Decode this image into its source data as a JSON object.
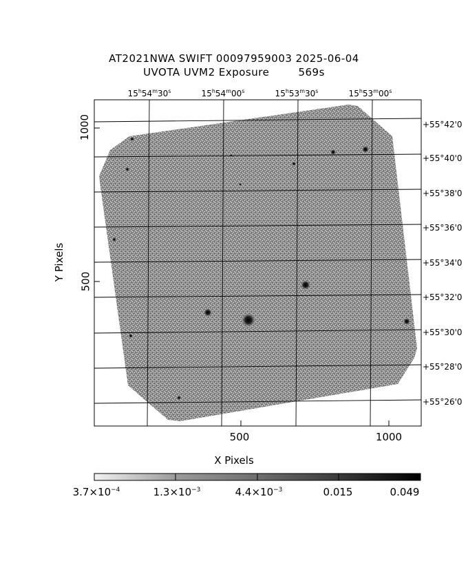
{
  "header": {
    "title_line1": "AT2021NWA SWIFT 00097959003 2025-06-04",
    "title_line2": "UVOTA UVM2 Exposure        569s"
  },
  "axes": {
    "xlabel": "X Pixels",
    "ylabel": "Y Pixels",
    "x_ticks": [
      "500",
      "1000"
    ],
    "y_ticks": [
      "500",
      "1000"
    ],
    "ra_ticks": [
      {
        "h": "15",
        "m": "54",
        "s": "30"
      },
      {
        "h": "15",
        "m": "54",
        "s": "00"
      },
      {
        "h": "15",
        "m": "53",
        "s": "30"
      },
      {
        "h": "15",
        "m": "53",
        "s": "00"
      }
    ],
    "dec_ticks": [
      "+55°42'0",
      "+55°40'0",
      "+55°38'0",
      "+55°36'0",
      "+55°34'0",
      "+55°32'0",
      "+55°30'0",
      "+55°28'0",
      "+55°26'0"
    ]
  },
  "colorbar": {
    "labels": [
      {
        "mant": "3.7×10",
        "exp": "−4"
      },
      {
        "mant": "1.3×10",
        "exp": "−3"
      },
      {
        "mant": "4.4×10",
        "exp": "−3"
      },
      {
        "mant": "0.015",
        "exp": ""
      },
      {
        "mant": "0.049",
        "exp": ""
      }
    ]
  }
}
